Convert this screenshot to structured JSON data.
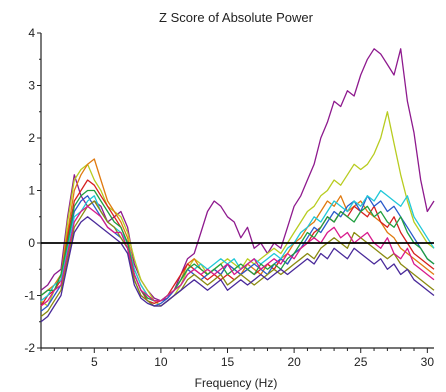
{
  "chart_data": {
    "type": "line",
    "title": "Z Score of Absolute Power",
    "xlabel": "Frequency (Hz)",
    "ylabel": "",
    "xlim": [
      1,
      30.5
    ],
    "ylim": [
      -2,
      4
    ],
    "xticks": [
      5,
      10,
      15,
      20,
      25,
      30
    ],
    "yticks": [
      -2,
      -1,
      0,
      1,
      2,
      3,
      4
    ],
    "grid": false,
    "legend": "none",
    "reference_line": 0,
    "x": [
      1,
      1.5,
      2,
      2.5,
      3,
      3.5,
      4,
      4.5,
      5,
      5.5,
      6,
      6.5,
      7,
      7.5,
      8,
      8.5,
      9,
      9.5,
      10,
      10.5,
      11,
      11.5,
      12,
      12.5,
      13,
      13.5,
      14,
      14.5,
      15,
      15.5,
      16,
      16.5,
      17,
      17.5,
      18,
      18.5,
      19,
      19.5,
      20,
      20.5,
      21,
      21.5,
      22,
      22.5,
      23,
      23.5,
      24,
      24.5,
      25,
      25.5,
      26,
      26.5,
      27,
      27.5,
      28,
      28.5,
      29,
      29.5,
      30,
      30.5
    ],
    "series": [
      {
        "color": "#8e1a8e",
        "values": [
          -0.9,
          -0.8,
          -0.6,
          -0.5,
          0.5,
          1.3,
          0.9,
          0.7,
          0.8,
          0.7,
          0.4,
          0.5,
          0.6,
          0.3,
          -0.4,
          -0.7,
          -0.9,
          -1.05,
          -1.1,
          -1.05,
          -0.9,
          -0.6,
          -0.3,
          -0.2,
          0.2,
          0.6,
          0.8,
          0.7,
          0.5,
          0.4,
          0.1,
          0.3,
          -0.1,
          0.0,
          -0.2,
          0.0,
          -0.1,
          0.3,
          0.7,
          0.9,
          1.2,
          1.5,
          2.0,
          2.3,
          2.7,
          2.6,
          2.9,
          2.8,
          3.2,
          3.5,
          3.7,
          3.6,
          3.4,
          3.2,
          3.7,
          2.7,
          2.1,
          1.2,
          0.6,
          0.8
        ]
      },
      {
        "color": "#b8cc20",
        "values": [
          -1.1,
          -1.2,
          -0.9,
          -0.7,
          0.4,
          1.2,
          1.4,
          1.5,
          1.2,
          1.0,
          0.7,
          0.6,
          0.5,
          0.2,
          -0.3,
          -0.7,
          -0.9,
          -1.1,
          -1.2,
          -1.1,
          -1.0,
          -0.8,
          -0.5,
          -0.3,
          -0.4,
          -0.6,
          -0.5,
          -0.4,
          -0.3,
          -0.4,
          -0.5,
          -0.3,
          -0.4,
          -0.3,
          -0.2,
          -0.1,
          -0.2,
          0.0,
          0.2,
          0.4,
          0.6,
          0.7,
          0.9,
          1.0,
          1.2,
          1.1,
          1.3,
          1.5,
          1.4,
          1.5,
          1.7,
          2.0,
          2.5,
          1.9,
          1.3,
          0.8,
          0.4,
          0.2,
          0.0,
          -0.1
        ]
      },
      {
        "color": "#e07a10",
        "values": [
          -1.0,
          -0.9,
          -0.8,
          -0.6,
          0.2,
          1.0,
          1.3,
          1.5,
          1.6,
          1.2,
          0.8,
          0.6,
          0.4,
          0.1,
          -0.5,
          -0.8,
          -1.0,
          -1.1,
          -1.1,
          -1.0,
          -0.9,
          -0.7,
          -0.4,
          -0.3,
          -0.5,
          -0.6,
          -0.5,
          -0.6,
          -0.4,
          -0.5,
          -0.6,
          -0.4,
          -0.5,
          -0.6,
          -0.4,
          -0.5,
          -0.3,
          -0.2,
          0.0,
          0.1,
          0.3,
          0.4,
          0.6,
          0.8,
          0.7,
          0.9,
          0.6,
          0.7,
          0.8,
          0.6,
          0.5,
          0.4,
          0.2,
          0.1,
          -0.1,
          -0.2,
          -0.3,
          -0.4,
          -0.5,
          -0.6
        ]
      },
      {
        "color": "#d62020",
        "values": [
          -1.2,
          -1.0,
          -0.9,
          -0.7,
          0.1,
          0.8,
          1.0,
          1.2,
          1.1,
          0.9,
          0.7,
          0.5,
          0.3,
          0.0,
          -0.6,
          -0.9,
          -1.1,
          -1.15,
          -1.1,
          -1.0,
          -0.8,
          -0.6,
          -0.4,
          -0.5,
          -0.6,
          -0.7,
          -0.6,
          -0.7,
          -0.6,
          -0.7,
          -0.6,
          -0.5,
          -0.6,
          -0.5,
          -0.4,
          -0.5,
          -0.3,
          -0.4,
          -0.2,
          -0.1,
          0.0,
          0.2,
          0.3,
          0.5,
          0.4,
          0.6,
          0.5,
          0.7,
          0.6,
          0.5,
          0.7,
          0.4,
          0.3,
          0.5,
          0.2,
          0.0,
          -0.2,
          -0.3,
          -0.4,
          -0.5
        ]
      },
      {
        "color": "#2a5acb",
        "values": [
          -1.3,
          -1.2,
          -1.0,
          -0.8,
          0.0,
          0.6,
          0.8,
          0.9,
          0.7,
          0.5,
          0.3,
          0.2,
          0.1,
          -0.1,
          -0.7,
          -1.0,
          -1.1,
          -1.2,
          -1.15,
          -1.05,
          -0.9,
          -0.7,
          -0.5,
          -0.6,
          -0.7,
          -0.6,
          -0.5,
          -0.6,
          -0.4,
          -0.5,
          -0.6,
          -0.5,
          -0.4,
          -0.5,
          -0.6,
          -0.4,
          -0.3,
          -0.4,
          -0.2,
          -0.1,
          0.1,
          0.3,
          0.2,
          0.4,
          0.6,
          0.5,
          0.7,
          0.8,
          0.6,
          0.9,
          0.7,
          0.8,
          0.6,
          0.7,
          0.5,
          0.3,
          0.1,
          -0.1,
          -0.3,
          -0.4
        ]
      },
      {
        "color": "#20c8d8",
        "values": [
          -1.1,
          -1.0,
          -0.8,
          -0.7,
          -0.1,
          0.5,
          0.6,
          0.8,
          0.9,
          0.6,
          0.4,
          0.3,
          0.2,
          0.0,
          -0.5,
          -0.8,
          -1.0,
          -1.1,
          -1.1,
          -1.0,
          -0.9,
          -0.8,
          -0.6,
          -0.5,
          -0.4,
          -0.5,
          -0.4,
          -0.3,
          -0.4,
          -0.3,
          -0.5,
          -0.4,
          -0.3,
          -0.4,
          -0.3,
          -0.2,
          -0.3,
          -0.1,
          0.0,
          0.2,
          0.3,
          0.5,
          0.4,
          0.6,
          0.8,
          0.7,
          0.6,
          0.8,
          0.7,
          0.9,
          0.8,
          1.0,
          0.9,
          0.8,
          0.7,
          0.9,
          0.5,
          0.3,
          0.1,
          -0.1
        ]
      },
      {
        "color": "#20a040",
        "values": [
          -1.0,
          -0.9,
          -0.9,
          -0.6,
          0.0,
          0.7,
          0.9,
          1.0,
          1.0,
          0.8,
          0.6,
          0.4,
          0.3,
          0.0,
          -0.6,
          -0.9,
          -1.05,
          -1.1,
          -1.1,
          -1.0,
          -0.9,
          -0.7,
          -0.5,
          -0.4,
          -0.5,
          -0.6,
          -0.5,
          -0.4,
          -0.6,
          -0.5,
          -0.4,
          -0.5,
          -0.6,
          -0.4,
          -0.5,
          -0.4,
          -0.5,
          -0.3,
          -0.2,
          0.0,
          0.2,
          0.1,
          0.3,
          0.5,
          0.4,
          0.6,
          0.5,
          0.4,
          0.6,
          0.7,
          0.5,
          0.6,
          0.4,
          0.3,
          0.5,
          0.2,
          0.0,
          -0.1,
          -0.3,
          -0.4
        ]
      },
      {
        "color": "#8a8a10",
        "values": [
          -1.4,
          -1.3,
          -1.1,
          -0.9,
          -0.3,
          0.3,
          0.5,
          0.7,
          0.8,
          0.6,
          0.4,
          0.3,
          0.1,
          -0.1,
          -0.7,
          -1.0,
          -1.1,
          -1.2,
          -1.2,
          -1.1,
          -1.0,
          -0.9,
          -0.7,
          -0.6,
          -0.7,
          -0.8,
          -0.7,
          -0.6,
          -0.8,
          -0.7,
          -0.6,
          -0.7,
          -0.8,
          -0.7,
          -0.6,
          -0.5,
          -0.6,
          -0.5,
          -0.4,
          -0.3,
          -0.2,
          -0.3,
          -0.1,
          0.0,
          0.1,
          0.0,
          -0.1,
          0.2,
          0.1,
          0.0,
          -0.1,
          -0.2,
          -0.3,
          -0.2,
          -0.4,
          -0.5,
          -0.6,
          -0.7,
          -0.8,
          -0.9
        ]
      },
      {
        "color": "#d81a8c",
        "values": [
          -1.2,
          -1.1,
          -0.9,
          -0.8,
          -0.2,
          0.4,
          0.6,
          0.7,
          0.6,
          0.5,
          0.3,
          0.2,
          0.2,
          -0.1,
          -0.6,
          -0.9,
          -1.0,
          -1.1,
          -1.1,
          -1.0,
          -0.9,
          -0.8,
          -0.6,
          -0.5,
          -0.6,
          -0.5,
          -0.6,
          -0.5,
          -0.4,
          -0.6,
          -0.5,
          -0.4,
          -0.3,
          -0.5,
          -0.4,
          -0.3,
          -0.4,
          -0.2,
          -0.3,
          -0.1,
          0.0,
          0.1,
          0.0,
          0.2,
          0.3,
          0.1,
          0.2,
          0.0,
          0.1,
          0.2,
          0.0,
          -0.1,
          0.1,
          -0.2,
          -0.3,
          -0.1,
          -0.4,
          -0.5,
          -0.6,
          -0.7
        ]
      },
      {
        "color": "#4a2a9a",
        "values": [
          -1.5,
          -1.4,
          -1.2,
          -1.0,
          -0.4,
          0.2,
          0.4,
          0.5,
          0.4,
          0.3,
          0.2,
          0.1,
          0.0,
          -0.2,
          -0.8,
          -1.05,
          -1.15,
          -1.2,
          -1.2,
          -1.1,
          -1.0,
          -0.9,
          -0.8,
          -0.7,
          -0.8,
          -0.9,
          -0.8,
          -0.7,
          -0.9,
          -0.8,
          -0.7,
          -0.8,
          -0.7,
          -0.6,
          -0.7,
          -0.6,
          -0.5,
          -0.6,
          -0.5,
          -0.4,
          -0.3,
          -0.4,
          -0.2,
          -0.3,
          -0.1,
          -0.2,
          -0.3,
          -0.1,
          -0.2,
          -0.3,
          -0.4,
          -0.3,
          -0.5,
          -0.4,
          -0.6,
          -0.5,
          -0.7,
          -0.8,
          -0.9,
          -1.0
        ]
      }
    ]
  }
}
